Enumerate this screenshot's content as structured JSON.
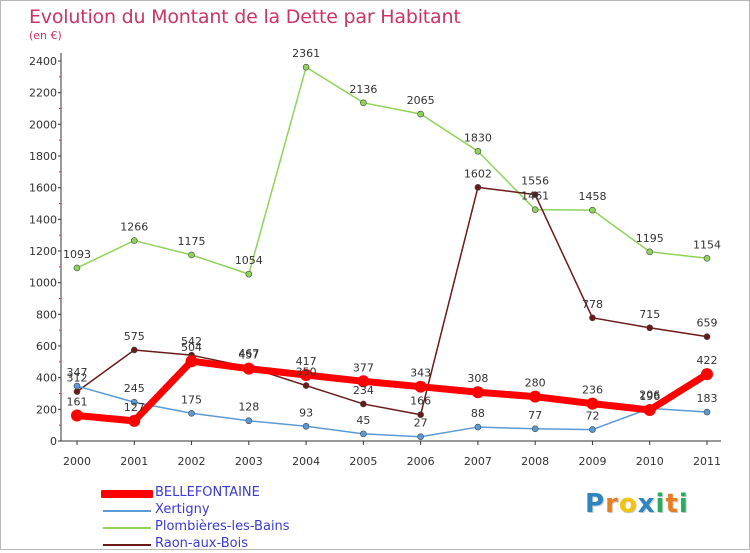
{
  "chart_data": {
    "type": "line",
    "title": "Evolution du Montant de la Dette par Habitant",
    "subtitle": "(en €)",
    "categories": [
      "2000",
      "2001",
      "2002",
      "2003",
      "2004",
      "2005",
      "2006",
      "2007",
      "2008",
      "2009",
      "2010",
      "2011"
    ],
    "ylim": [
      0,
      2400
    ],
    "yticks": [
      0,
      200,
      400,
      600,
      800,
      1000,
      1200,
      1400,
      1600,
      1800,
      2000,
      2200,
      2400
    ],
    "grid": false,
    "legend_position": "bottom-left",
    "series": [
      {
        "name": "BELLEFONTAINE",
        "color": "#ff0000",
        "values": [
          161,
          127,
          504,
          457,
          417,
          377,
          343,
          308,
          280,
          236,
          196,
          422
        ]
      },
      {
        "name": "Xertigny",
        "color": "#5b9bd5",
        "values": [
          347,
          245,
          175,
          128,
          93,
          45,
          27,
          88,
          77,
          72,
          206,
          183
        ]
      },
      {
        "name": "Plombières-les-Bains",
        "color": "#8fd35a",
        "values": [
          1093,
          1266,
          1175,
          1054,
          2361,
          2136,
          2065,
          1830,
          1461,
          1458,
          1195,
          1154
        ]
      },
      {
        "name": "Raon-aux-Bois",
        "color": "#6b1a1a",
        "values": [
          312,
          575,
          542,
          467,
          350,
          234,
          166,
          1602,
          1556,
          778,
          715,
          659
        ]
      }
    ]
  },
  "logo": {
    "letters": [
      "P",
      "r",
      "o",
      "x",
      "i",
      "t",
      "i"
    ],
    "colors": [
      "#2e86c1",
      "#e67e22",
      "#f1c40f",
      "#2e86c1",
      "#27ae60",
      "#e67e22",
      "#27ae60"
    ]
  }
}
